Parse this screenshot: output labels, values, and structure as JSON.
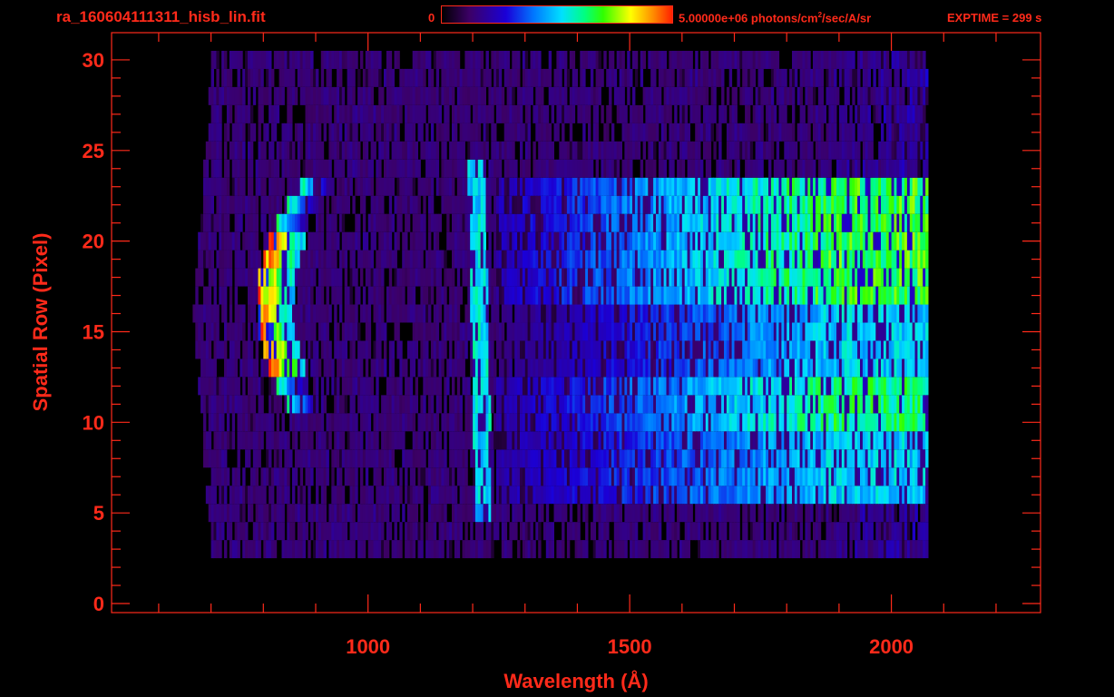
{
  "header": {
    "filename": "ra_160604111311_hisb_lin.fit",
    "colorbar_min": "0",
    "colorbar_max_prefix": "5.00000e+06 photons/cm",
    "colorbar_max_sup": "2",
    "colorbar_max_suffix": "/sec/A/sr",
    "exptime": "EXPTIME = 299 s"
  },
  "colors": {
    "axis": "#ff2a1a",
    "background": "#000000"
  },
  "chart_data": {
    "type": "heatmap",
    "title": "ra_160604111311_hisb_lin.fit",
    "xlabel": "Wavelength (Å)",
    "ylabel": "Spatial Row (Pixel)",
    "xlim": [
      510,
      2285
    ],
    "ylim": [
      -0.5,
      31.5
    ],
    "x_ticks": [
      1000,
      1500,
      2000
    ],
    "y_ticks": [
      0,
      5,
      10,
      15,
      20,
      25,
      30
    ],
    "colorbar": {
      "min": 0,
      "max": 5000000,
      "unit": "photons/cm^2/sec/A/sr"
    },
    "exptime_s": 299,
    "features": [
      {
        "name": "Lyman-beta arc",
        "wavelength_range": [
          775,
          905
        ],
        "rows": [
          11,
          23
        ],
        "peak_rows": [
          13,
          20
        ],
        "level": 1.0
      },
      {
        "name": "Lyman-alpha line",
        "wavelength_range": [
          1195,
          1230
        ],
        "rows": [
          5,
          24
        ],
        "level": 0.5
      },
      {
        "name": "continuum upper",
        "wavelength_range": [
          1250,
          2060
        ],
        "rows": [
          17,
          23
        ],
        "level": 0.65
      },
      {
        "name": "continuum lower",
        "wavelength_range": [
          1250,
          2060
        ],
        "rows": [
          6,
          12
        ],
        "level": 0.55
      }
    ],
    "data_extent": {
      "wavelength": [
        665,
        2065
      ],
      "rows": [
        3,
        30
      ]
    }
  }
}
